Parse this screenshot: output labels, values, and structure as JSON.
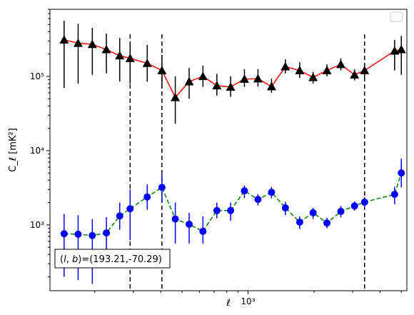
{
  "chart_data": {
    "type": "scatter",
    "xscale": "log",
    "yscale": "log",
    "xlim": [
      125,
      5300
    ],
    "ylim": [
      130,
      800000
    ],
    "xlabel": "ℓ",
    "ylabel": "C_ℓ  [mK²]",
    "x_tick_labels": [
      {
        "value": 1000,
        "label": "10³"
      }
    ],
    "y_tick_labels": [
      {
        "value": 1000,
        "label": "10³"
      },
      {
        "value": 10000,
        "label": "10⁴"
      },
      {
        "value": 100000,
        "label": "10⁵"
      }
    ],
    "grid": false,
    "legend": {
      "placement": "top-right",
      "entries": []
    },
    "annotation": "(l, b)=(193.21,-70.29)",
    "vlines": [
      290,
      405,
      3400
    ],
    "series": [
      {
        "color": "#ff0000",
        "marker": "triangle",
        "marker_color": "#000000",
        "errorbar_color": "#000000",
        "linestyle": "solid",
        "x": [
          145,
          168,
          195,
          226,
          260,
          290,
          347,
          405,
          466,
          539,
          623,
          721,
          833,
          963,
          1110,
          1280,
          1480,
          1720,
          1980,
          2290,
          2650,
          3060,
          3400,
          4660,
          5000
        ],
        "y": [
          310000,
          280000,
          270000,
          230000,
          190000,
          175000,
          150000,
          120000,
          52000,
          85000,
          100000,
          75000,
          72000,
          92000,
          93000,
          73000,
          135000,
          120000,
          97000,
          120000,
          145000,
          105000,
          120000,
          220000,
          230000
        ],
        "y_lower": [
          70000,
          80000,
          105000,
          110000,
          85000,
          80000,
          85000,
          70000,
          23000,
          50000,
          72000,
          55000,
          53000,
          72000,
          73000,
          60000,
          110000,
          95000,
          80000,
          100000,
          120000,
          88000,
          95000,
          120000,
          105000
        ],
        "y_upper": [
          560000,
          510000,
          450000,
          375000,
          330000,
          280000,
          265000,
          195000,
          100000,
          130000,
          140000,
          108000,
          100000,
          125000,
          125000,
          93000,
          170000,
          155000,
          115000,
          145000,
          175000,
          125000,
          150000,
          310000,
          350000
        ]
      },
      {
        "color": "#008000",
        "marker": "circle",
        "marker_color": "#0000ff",
        "errorbar_color": "#0000ff",
        "linestyle": "dashed",
        "x": [
          145,
          168,
          195,
          226,
          260,
          290,
          347,
          405,
          466,
          539,
          623,
          721,
          833,
          963,
          1110,
          1280,
          1480,
          1720,
          1980,
          2290,
          2650,
          3060,
          3400,
          4660,
          5000
        ],
        "y": [
          760,
          750,
          720,
          780,
          1320,
          1650,
          2380,
          3200,
          1200,
          1020,
          820,
          1560,
          1560,
          2880,
          2200,
          2750,
          1700,
          1090,
          1460,
          1060,
          1520,
          1800,
          2030,
          2580,
          5000
        ],
        "y_lower": [
          200,
          180,
          160,
          360,
          860,
          620,
          1600,
          2000,
          560,
          560,
          560,
          1230,
          1140,
          2300,
          1830,
          2280,
          1350,
          880,
          1200,
          900,
          1260,
          1560,
          1700,
          1900,
          3200
        ],
        "y_upper": [
          1400,
          1350,
          1200,
          1270,
          2000,
          3000,
          3500,
          4800,
          2000,
          1450,
          1300,
          2000,
          2000,
          3400,
          2600,
          3250,
          2050,
          1300,
          1700,
          1250,
          1800,
          2080,
          2360,
          3250,
          7800
        ]
      }
    ]
  }
}
